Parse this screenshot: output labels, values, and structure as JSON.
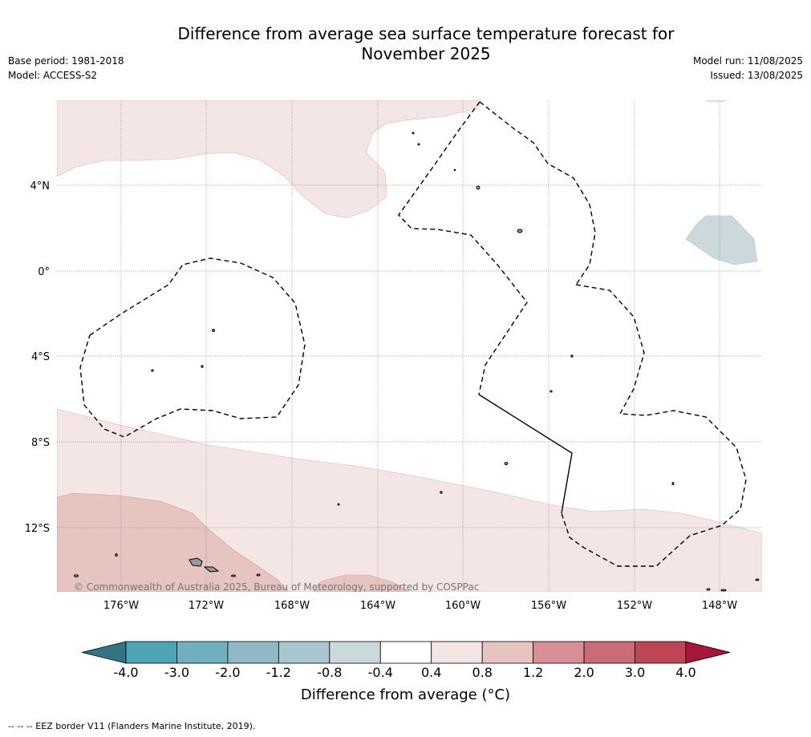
{
  "header": {
    "title_line1": "Difference from average sea surface temperature forecast for",
    "title_line2": "November 2025",
    "base_period": "Base period: 1981-2018",
    "model": "Model: ACCESS-S2",
    "model_run": "Model run: 11/08/2025",
    "issued": "Issued: 13/08/2025"
  },
  "map": {
    "lat_labels": [
      "4°N",
      "0°",
      "4°S",
      "8°S",
      "12°S"
    ],
    "lon_labels": [
      "176°W",
      "172°W",
      "168°W",
      "164°W",
      "160°W",
      "156°W",
      "152°W",
      "148°W"
    ],
    "copyright": "© Commonwealth of Australia 2025, Bureau of Meteorology, supported by COSPPac",
    "land_color": "#999999",
    "eez_border_style": "dashed"
  },
  "colorbar": {
    "ticks": [
      "-4.0",
      "-3.0",
      "-2.0",
      "-1.2",
      "-0.8",
      "-0.4",
      "0.4",
      "0.8",
      "1.2",
      "2.0",
      "3.0",
      "4.0"
    ],
    "colors": [
      "#2f7583",
      "#4da4b5",
      "#6fb0bf",
      "#8fb9c5",
      "#a9c6ce",
      "#cbd8dc",
      "#ffffff",
      "#f4e6e5",
      "#e6c4c0",
      "#d78e94",
      "#c96c76",
      "#be4655",
      "#a8163a"
    ],
    "label": "Difference from average (°C)"
  },
  "footer": {
    "eez_note": "--  --  -- EEZ border V11 (Flanders Marine Institute, 2019)."
  }
}
